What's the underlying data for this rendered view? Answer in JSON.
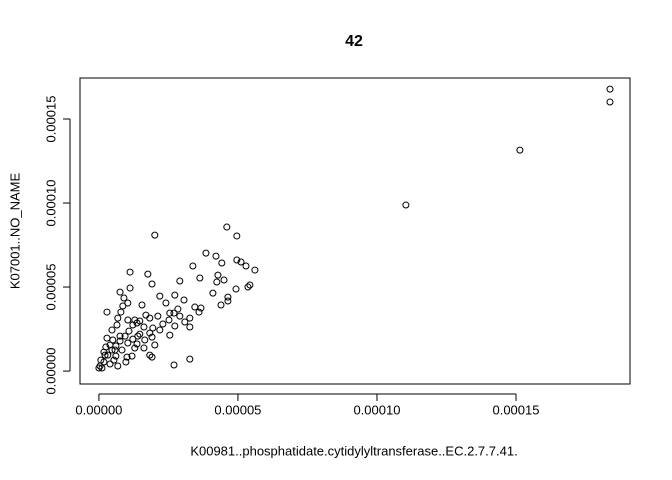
{
  "chart_data": {
    "type": "scatter",
    "title": "42",
    "x_label": "K00981..phosphatidate.cytidylyltransferase..EC.2.7.7.41.",
    "y_label": "K07001..NO_NAME",
    "xlim": [
      -6.8e-06,
      0.000191
    ],
    "ylim": [
      -7.7e-06,
      0.0001744
    ],
    "xticks": [
      {
        "value": 0,
        "label": "0.00000"
      },
      {
        "value": 5e-05,
        "label": "0.00005"
      },
      {
        "value": 0.0001,
        "label": "0.00010"
      },
      {
        "value": 0.00015,
        "label": "0.00015"
      }
    ],
    "yticks": [
      {
        "value": 0,
        "label": "0.00000"
      },
      {
        "value": 5e-05,
        "label": "0.00005"
      },
      {
        "value": 0.0001,
        "label": "0.00010"
      },
      {
        "value": 0.00015,
        "label": "0.00015"
      }
    ],
    "color": "#000000",
    "x": [
      0.0001838,
      0.0001838,
      0.0001514,
      0.0001104,
      2.01e-05,
      4.6e-05,
      4.96e-05,
      3.85e-05,
      4.21e-05,
      4.96e-05,
      5.11e-05,
      5.29e-05,
      5.61e-05,
      4.42e-05,
      5.43e-05,
      5.36e-05,
      4.28e-05,
      4.5e-05,
      4.24e-05,
      4.93e-05,
      4.64e-05,
      4.64e-05,
      4.39e-05,
      4.1e-05,
      3.6e-05,
      3.67e-05,
      3.45e-05,
      3.38e-05,
      2.91e-05,
      3.63e-05,
      2.41e-05,
      3.06e-05,
      2.84e-05,
      2.7e-05,
      2.55e-05,
      2.52e-05,
      2.73e-05,
      1.91e-05,
      1.76e-05,
      1.12e-05,
      7.6e-06,
      1.83e-05,
      1.69e-05,
      2.12e-05,
      2.3e-05,
      1.94e-05,
      1.91e-05,
      1.83e-05,
      1.62e-05,
      1.47e-05,
      1.37e-05,
      1.22e-05,
      1.12e-05,
      1.04e-05,
      1.04e-05,
      9e-06,
      8.6e-06,
      7.9e-06,
      6.8e-06,
      6.5e-06,
      4.7e-06,
      5e-06,
      2.9e-06,
      2.9e-06,
      2.5e-06,
      1.8e-06,
      7e-07,
      4e-07,
      0,
      1.1e-06,
      1.8e-06,
      3.2e-06,
      4.7e-06,
      6.1e-06,
      7.6e-06,
      9.4e-06,
      1.08e-05,
      1.22e-05,
      1.37e-05,
      1.47e-05,
      1.62e-05,
      1.83e-05,
      2.7e-05,
      1.91e-05,
      1.19e-05,
      9.7e-06,
      6.8e-06,
      5.4e-06,
      4e-06,
      8.3e-06,
      6.1e-06,
      1.29e-05,
      1.65e-05,
      2.19e-05,
      2.91e-05,
      3.09e-05,
      3.27e-05,
      2.55e-05,
      2.01e-05,
      1.4e-05,
      1.04e-05,
      7.6e-06,
      4e-06,
      2.2e-06,
      5.8e-06,
      1.01e-05,
      1.29e-05,
      1.55e-05,
      2.19e-05,
      2.73e-05,
      3.27e-05,
      3.27e-05
    ],
    "y": [
      0.0001678,
      0.0001601,
      0.0001315,
      9.88e-05,
      8.09e-05,
      8.57e-05,
      8.04e-05,
      7.02e-05,
      6.84e-05,
      6.61e-05,
      6.49e-05,
      6.25e-05,
      6.01e-05,
      6.43e-05,
      5.12e-05,
      5e-05,
      5.71e-05,
      5.42e-05,
      5.3e-05,
      4.88e-05,
      4.4e-05,
      4.17e-05,
      3.93e-05,
      4.64e-05,
      3.51e-05,
      3.75e-05,
      3.81e-05,
      6.25e-05,
      5.36e-05,
      5.54e-05,
      4.05e-05,
      4.23e-05,
      3.69e-05,
      3.45e-05,
      3.45e-05,
      3.04e-05,
      2.68e-05,
      5.18e-05,
      5.77e-05,
      5.89e-05,
      4.7e-05,
      3.15e-05,
      3.33e-05,
      3.27e-05,
      2.8e-05,
      2.56e-05,
      2.02e-05,
      2.26e-05,
      2.62e-05,
      2.98e-05,
      2.86e-05,
      2.74e-05,
      4.94e-05,
      4.05e-05,
      3.04e-05,
      4.35e-05,
      3.87e-05,
      3.51e-05,
      3.15e-05,
      2.74e-05,
      2.44e-05,
      1.85e-05,
      3.51e-05,
      1.96e-05,
      1.43e-05,
      1.13e-05,
      6.5e-06,
      3e-06,
      1.8e-06,
      1.8e-06,
      5.4e-06,
      9.5e-06,
      1.25e-05,
      1.49e-05,
      1.79e-05,
      2.08e-05,
      2.38e-05,
      1.9e-05,
      1.61e-05,
      2.2e-05,
      1.37e-05,
      9.5e-06,
      3.6e-06,
      8.3e-06,
      8.9e-06,
      5.4e-06,
      3e-06,
      6.5e-06,
      4.2e-06,
      1.25e-05,
      8.9e-06,
      1.37e-05,
      1.85e-05,
      2.44e-05,
      3.27e-05,
      2.92e-05,
      2.62e-05,
      2.14e-05,
      1.55e-05,
      2.08e-05,
      1.67e-05,
      2.08e-05,
      1.55e-05,
      9.5e-06,
      1.25e-05,
      8.3e-06,
      3.04e-05,
      3.93e-05,
      4.46e-05,
      4.52e-05,
      3.15e-05,
      7.1e-06
    ]
  }
}
